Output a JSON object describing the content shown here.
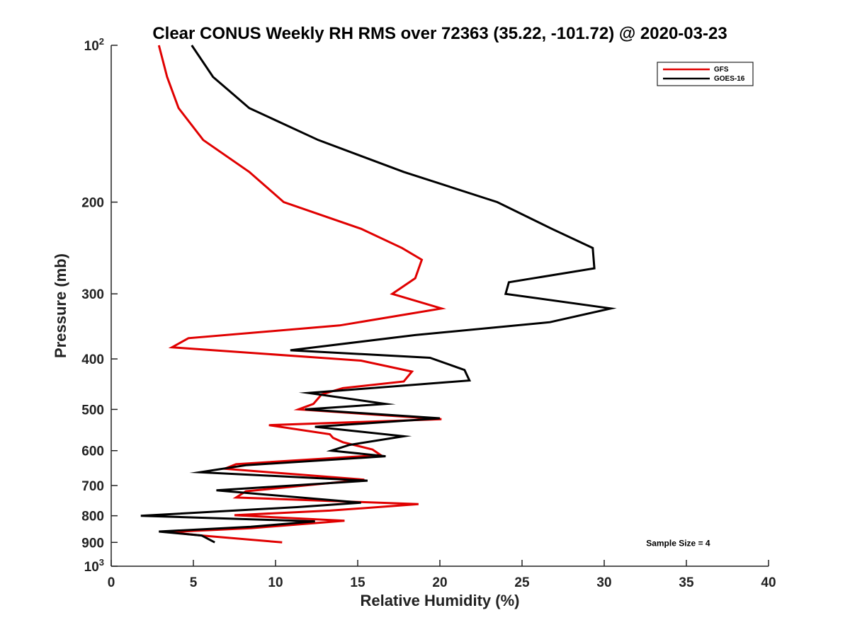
{
  "chart_data": {
    "type": "line",
    "title": "Clear CONUS Weekly RH RMS over 72363 (35.22, -101.72) @ 2020-03-23",
    "xlabel": "Relative Humidity (%)",
    "ylabel": "Pressure (mb)",
    "xlim": [
      0,
      40
    ],
    "ylim": [
      100,
      1000
    ],
    "yscale": "log",
    "y_reversed": true,
    "grid": false,
    "xticks": [
      0,
      5,
      10,
      15,
      20,
      25,
      30,
      35,
      40
    ],
    "xtick_labels": [
      "0",
      "5",
      "10",
      "15",
      "20",
      "25",
      "30",
      "35",
      "40"
    ],
    "yticks": [
      {
        "value": 100,
        "base": "10",
        "exp": "2"
      },
      {
        "value": 200,
        "base": "200",
        "exp": ""
      },
      {
        "value": 300,
        "base": "300",
        "exp": ""
      },
      {
        "value": 400,
        "base": "400",
        "exp": ""
      },
      {
        "value": 500,
        "base": "500",
        "exp": ""
      },
      {
        "value": 600,
        "base": "600",
        "exp": ""
      },
      {
        "value": 700,
        "base": "700",
        "exp": ""
      },
      {
        "value": 800,
        "base": "800",
        "exp": ""
      },
      {
        "value": 900,
        "base": "900",
        "exp": ""
      },
      {
        "value": 1000,
        "base": "10",
        "exp": "3"
      }
    ],
    "legend_position": "top-right",
    "series": [
      {
        "name": "GFS",
        "color": "#e00000",
        "points": [
          [
            2.9,
            100
          ],
          [
            3.4,
            115
          ],
          [
            4.1,
            132
          ],
          [
            5.6,
            152
          ],
          [
            8.4,
            175
          ],
          [
            10.5,
            200
          ],
          [
            15.2,
            225
          ],
          [
            17.7,
            245
          ],
          [
            18.9,
            258
          ],
          [
            18.5,
            280
          ],
          [
            17.1,
            300
          ],
          [
            20.1,
            320
          ],
          [
            13.9,
            345
          ],
          [
            4.7,
            365
          ],
          [
            3.7,
            380
          ],
          [
            15.2,
            403
          ],
          [
            18.3,
            423
          ],
          [
            17.8,
            442
          ],
          [
            14.1,
            455
          ],
          [
            12.8,
            468
          ],
          [
            12.3,
            488
          ],
          [
            11.4,
            500
          ],
          [
            20.1,
            522
          ],
          [
            9.6,
            536
          ],
          [
            13.3,
            558
          ],
          [
            13.5,
            567
          ],
          [
            14.1,
            578
          ],
          [
            15.9,
            597
          ],
          [
            16.4,
            612
          ],
          [
            7.6,
            637
          ],
          [
            6.9,
            650
          ],
          [
            15.4,
            682
          ],
          [
            8.2,
            718
          ],
          [
            7.6,
            738
          ],
          [
            18.7,
            760
          ],
          [
            13.3,
            782
          ],
          [
            7.5,
            798
          ],
          [
            14.2,
            818
          ],
          [
            8.5,
            845
          ],
          [
            3.5,
            860
          ],
          [
            5.5,
            873
          ],
          [
            10.4,
            900
          ]
        ]
      },
      {
        "name": "GOES-16",
        "color": "#000000",
        "points": [
          [
            4.9,
            100
          ],
          [
            6.2,
            115
          ],
          [
            8.4,
            132
          ],
          [
            12.6,
            152
          ],
          [
            17.8,
            175
          ],
          [
            23.5,
            200
          ],
          [
            26.8,
            225
          ],
          [
            29.3,
            245
          ],
          [
            29.4,
            268
          ],
          [
            24.2,
            285
          ],
          [
            24.0,
            300
          ],
          [
            30.4,
            320
          ],
          [
            26.7,
            340
          ],
          [
            18.5,
            360
          ],
          [
            10.9,
            385
          ],
          [
            19.4,
            398
          ],
          [
            21.5,
            420
          ],
          [
            21.8,
            440
          ],
          [
            12.0,
            465
          ],
          [
            16.7,
            488
          ],
          [
            11.8,
            500
          ],
          [
            20.0,
            520
          ],
          [
            12.4,
            540
          ],
          [
            17.8,
            563
          ],
          [
            14.5,
            585
          ],
          [
            13.4,
            600
          ],
          [
            16.7,
            615
          ],
          [
            8.2,
            640
          ],
          [
            5.4,
            660
          ],
          [
            15.6,
            685
          ],
          [
            6.4,
            715
          ],
          [
            15.2,
            755
          ],
          [
            11.3,
            770
          ],
          [
            1.8,
            800
          ],
          [
            12.4,
            820
          ],
          [
            8.5,
            840
          ],
          [
            2.9,
            858
          ],
          [
            5.5,
            873
          ],
          [
            6.3,
            900
          ]
        ]
      }
    ],
    "annotations": [
      {
        "text": "Sample Size = 4",
        "x": 34.5,
        "y": 900
      }
    ]
  }
}
